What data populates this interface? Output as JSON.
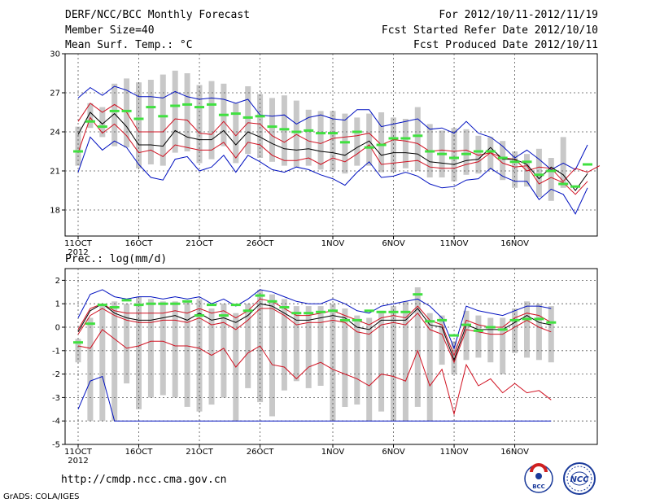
{
  "header": {
    "title": "DERF/NCC/BCC Monthly Forecast",
    "member_size": "Member Size=40",
    "variable": "Mean Surf. Temp.: °C",
    "period": "For 2012/10/11-2012/11/19",
    "started": "Fcst Started Refer Date 2012/10/10",
    "produced": "Fcst Produced Date 2012/10/11"
  },
  "footer": {
    "url": "http://cmdp.ncc.cma.gov.cn",
    "grads": "GrADS: COLA/IGES"
  },
  "logos": {
    "bcc": "BCC",
    "ncc": "NCC"
  },
  "colors": {
    "box": "#c8c8c8",
    "median": "#40e040",
    "mean": "#000000",
    "spread": "#d01020",
    "extreme": "#0010c0"
  },
  "chart_data": [
    {
      "type": "box",
      "title": "Mean Surf. Temp.: °C",
      "ylim": [
        16,
        30
      ],
      "yticks": [
        18,
        21,
        24,
        27,
        30
      ],
      "xticks": [
        {
          "i": 0,
          "label": "11OCT",
          "sub": "2012"
        },
        {
          "i": 5,
          "label": "16OCT"
        },
        {
          "i": 10,
          "label": "21OCT"
        },
        {
          "i": 15,
          "label": "26OCT"
        },
        {
          "i": 21,
          "label": "1NOV"
        },
        {
          "i": 26,
          "label": "6NOV"
        },
        {
          "i": 31,
          "label": "11NOV"
        },
        {
          "i": 36,
          "label": "16NOV"
        }
      ],
      "ndays": 40,
      "series": [
        {
          "name": "max",
          "values": [
            26.6,
            27.4,
            26.8,
            27.5,
            27.2,
            26.7,
            26.7,
            26.6,
            27.1,
            26.7,
            26.5,
            26.6,
            26.5,
            26.2,
            26.5,
            25.3,
            25.2,
            25.3,
            24.6,
            25.1,
            25.3,
            25.0,
            24.9,
            25.7,
            25.7,
            24.4,
            24.6,
            24.8,
            25.0,
            24.2,
            24.3,
            23.9,
            24.8,
            23.9,
            23.6,
            22.9,
            22.0,
            22.6,
            21.9,
            21.1,
            21.6,
            21.1,
            23.0
          ]
        },
        {
          "name": "upper",
          "values": [
            24.8,
            26.2,
            25.5,
            26.1,
            25.5,
            24.0,
            24.0,
            24.0,
            25.0,
            24.9,
            23.9,
            23.8,
            24.8,
            23.7,
            24.7,
            24.6,
            23.7,
            23.2,
            23.8,
            23.3,
            23.1,
            23.5,
            23.6,
            23.7,
            23.9,
            23.0,
            23.4,
            23.3,
            23.1,
            22.5,
            22.6,
            22.5,
            22.6,
            22.2,
            22.4,
            22.0,
            21.9,
            21.0,
            21.3,
            21.2,
            20.2,
            21.2,
            20.9,
            21.4
          ]
        },
        {
          "name": "mean",
          "values": [
            23.8,
            25.5,
            24.6,
            25.4,
            24.4,
            23.0,
            23.0,
            22.9,
            24.1,
            23.6,
            23.4,
            23.4,
            24.1,
            23.0,
            24.0,
            23.6,
            23.1,
            22.7,
            22.6,
            22.7,
            22.5,
            22.4,
            22.2,
            22.8,
            23.3,
            22.2,
            22.4,
            22.4,
            22.3,
            21.7,
            21.6,
            21.5,
            21.8,
            21.9,
            22.8,
            21.9,
            21.9,
            21.5,
            20.4,
            21.3,
            20.7,
            19.5,
            20.8
          ]
        },
        {
          "name": "lower",
          "values": [
            22.4,
            25.1,
            23.9,
            24.6,
            23.7,
            22.4,
            22.6,
            22.1,
            23.0,
            22.8,
            22.6,
            22.6,
            23.2,
            22.0,
            23.2,
            23.0,
            22.2,
            21.8,
            21.8,
            22.0,
            21.5,
            22.0,
            21.7,
            22.3,
            23.0,
            21.5,
            21.6,
            21.7,
            21.8,
            21.3,
            21.2,
            21.2,
            21.5,
            21.7,
            22.4,
            21.6,
            21.3,
            21.4,
            20.0,
            20.5,
            20.1,
            19.2,
            20.2
          ]
        },
        {
          "name": "min",
          "values": [
            20.9,
            23.6,
            22.6,
            23.3,
            22.8,
            21.5,
            20.5,
            20.3,
            21.9,
            22.1,
            21.0,
            21.3,
            22.2,
            20.9,
            22.2,
            21.7,
            21.1,
            20.9,
            21.3,
            21.1,
            20.7,
            20.4,
            19.9,
            20.9,
            21.7,
            20.5,
            20.6,
            20.9,
            20.6,
            20.0,
            19.7,
            19.8,
            20.3,
            20.4,
            21.2,
            20.6,
            20.2,
            20.2,
            18.8,
            19.6,
            19.2,
            17.7,
            19.7
          ]
        },
        {
          "name": "box_high",
          "values": [
            24.4,
            26.2,
            25.9,
            27.7,
            28.1,
            27.8,
            28.0,
            28.4,
            28.7,
            28.5,
            27.6,
            27.9,
            27.7,
            26.2,
            27.5,
            26.9,
            26.6,
            26.8,
            26.4,
            25.7,
            25.6,
            25.6,
            25.4,
            25.1,
            25.4,
            25.5,
            25.1,
            25.0,
            25.9,
            24.6,
            24.1,
            24.3,
            24.2,
            23.7,
            23.6,
            23.3,
            22.5,
            22.3,
            22.7,
            22.0,
            23.6
          ]
        },
        {
          "name": "box_low",
          "values": [
            21.4,
            24.3,
            23.6,
            22.9,
            22.8,
            21.2,
            21.5,
            21.4,
            22.4,
            22.5,
            21.6,
            21.9,
            22.9,
            21.6,
            22.3,
            22.0,
            21.7,
            21.4,
            21.3,
            21.4,
            21.1,
            21.0,
            20.8,
            21.4,
            21.4,
            20.9,
            20.9,
            21.2,
            21.0,
            20.5,
            20.5,
            20.2,
            20.7,
            20.8,
            21.1,
            20.3,
            19.7,
            19.8,
            19.0,
            18.7,
            19.7
          ]
        },
        {
          "name": "median",
          "values": [
            22.5,
            24.8,
            24.4,
            25.6,
            25.6,
            25.0,
            25.9,
            25.2,
            26.0,
            26.1,
            25.9,
            26.1,
            25.3,
            25.4,
            25.1,
            25.2,
            24.4,
            24.2,
            24.0,
            24.1,
            23.9,
            23.9,
            23.2,
            24.0,
            22.8,
            23.0,
            23.5,
            23.5,
            23.7,
            22.5,
            22.3,
            22.0,
            22.3,
            22.5,
            22.5,
            22.0,
            21.7,
            21.7,
            20.7,
            21.0,
            20.0,
            19.8,
            21.5
          ]
        }
      ]
    },
    {
      "type": "box",
      "title": "Prec.: log(mm/d)",
      "ylim": [
        -5,
        2.5
      ],
      "yticks": [
        -5,
        -4,
        -3,
        -2,
        -1,
        0,
        1,
        2
      ],
      "xticks": [
        {
          "i": 0,
          "label": "11OCT",
          "sub": "2012"
        },
        {
          "i": 5,
          "label": "16OCT"
        },
        {
          "i": 10,
          "label": "21OCT"
        },
        {
          "i": 15,
          "label": "26OCT"
        },
        {
          "i": 21,
          "label": "1NOV"
        },
        {
          "i": 26,
          "label": "6NOV"
        },
        {
          "i": 31,
          "label": "11NOV"
        },
        {
          "i": 36,
          "label": "16NOV"
        }
      ],
      "ndays": 40,
      "series": [
        {
          "name": "max",
          "values": [
            0.4,
            1.4,
            1.6,
            1.3,
            1.2,
            1.3,
            1.3,
            1.2,
            1.3,
            1.2,
            1.3,
            1.0,
            1.2,
            0.9,
            1.2,
            1.6,
            1.5,
            1.3,
            1.1,
            1.0,
            1.0,
            1.2,
            1.0,
            0.7,
            0.6,
            0.9,
            1.0,
            1.1,
            1.2,
            0.9,
            0.4,
            -0.9,
            0.9,
            0.7,
            0.6,
            0.5,
            0.7,
            0.9,
            0.9,
            0.8
          ]
        },
        {
          "name": "upper",
          "values": [
            -0.1,
            0.8,
            1.0,
            0.7,
            0.6,
            0.6,
            0.6,
            0.6,
            0.7,
            0.6,
            0.8,
            0.6,
            0.7,
            0.4,
            0.7,
            1.2,
            1.1,
            0.8,
            0.5,
            0.5,
            0.6,
            0.7,
            0.5,
            0.3,
            0.1,
            0.4,
            0.5,
            0.4,
            0.9,
            0.3,
            0.1,
            -1.2,
            0.3,
            0.1,
            0.0,
            0.0,
            0.4,
            0.6,
            0.5,
            0.2
          ]
        },
        {
          "name": "mean",
          "values": [
            -0.2,
            0.7,
            1.0,
            0.6,
            0.4,
            0.3,
            0.3,
            0.4,
            0.5,
            0.3,
            0.6,
            0.3,
            0.4,
            0.2,
            0.5,
            1.0,
            0.9,
            0.6,
            0.3,
            0.3,
            0.4,
            0.5,
            0.4,
            0.0,
            -0.1,
            0.3,
            0.3,
            0.3,
            0.8,
            0.1,
            0.0,
            -1.4,
            0.1,
            -0.1,
            -0.1,
            -0.1,
            0.2,
            0.5,
            0.2,
            0.1
          ]
        },
        {
          "name": "lower",
          "values": [
            -0.3,
            0.5,
            0.8,
            0.5,
            0.3,
            0.2,
            0.2,
            0.3,
            0.3,
            0.2,
            0.4,
            0.1,
            0.2,
            -0.1,
            0.3,
            0.8,
            0.8,
            0.5,
            0.1,
            0.2,
            0.2,
            0.3,
            0.2,
            -0.2,
            -0.3,
            0.1,
            0.2,
            0.1,
            0.6,
            -0.1,
            -0.3,
            -1.5,
            -0.1,
            -0.2,
            -0.3,
            -0.3,
            0.0,
            0.3,
            0.0,
            -0.2
          ]
        },
        {
          "name": "spread_low",
          "values": [
            -0.8,
            -0.9,
            -0.1,
            -0.5,
            -0.9,
            -0.8,
            -0.6,
            -0.6,
            -0.8,
            -0.8,
            -0.9,
            -1.2,
            -0.9,
            -1.7,
            -1.1,
            -0.8,
            -1.6,
            -1.7,
            -2.2,
            -1.7,
            -1.5,
            -1.8,
            -2.0,
            -2.2,
            -2.5,
            -2.0,
            -2.1,
            -2.3,
            -1.0,
            -2.5,
            -1.8,
            -3.7,
            -1.6,
            -2.5,
            -2.2,
            -2.8,
            -2.4,
            -2.8,
            -2.7,
            -3.1
          ]
        },
        {
          "name": "min",
          "values": [
            -3.5,
            -2.3,
            -2.1,
            -4.0,
            -4.0,
            -4.0,
            -4.0,
            -4.0,
            -4.0,
            -4.0,
            -4.0,
            -4.0,
            -4.0,
            -4.0,
            -4.0,
            -4.0,
            -4.0,
            -4.0,
            -4.0,
            -4.0,
            -4.0,
            -4.0,
            -4.0,
            -4.0,
            -4.0,
            -4.0,
            -4.0,
            -4.0,
            -4.0,
            -4.0,
            -4.0,
            -4.0,
            -4.0,
            -4.0,
            -4.0,
            -4.0,
            -4.0,
            -4.0,
            -4.0,
            -4.0
          ]
        },
        {
          "name": "box_high",
          "values": [
            -0.5,
            0.4,
            1.0,
            1.1,
            1.0,
            1.3,
            1.2,
            1.1,
            1.1,
            1.1,
            1.2,
            0.8,
            1.0,
            0.6,
            1.0,
            1.6,
            1.4,
            1.2,
            0.9,
            0.9,
            0.9,
            1.0,
            0.8,
            0.5,
            0.4,
            0.7,
            0.9,
            1.1,
            1.7,
            0.6,
            0.5,
            -0.6,
            0.7,
            0.5,
            0.4,
            0.4,
            0.8,
            1.1,
            1.0,
            0.9,
            0.8
          ]
        },
        {
          "name": "box_low",
          "values": [
            -1.5,
            -4.0,
            -4.0,
            -4.0,
            -2.4,
            -3.5,
            -3.0,
            -2.9,
            -3.0,
            -3.4,
            -3.6,
            -3.3,
            -3.0,
            -4.0,
            -2.6,
            -3.2,
            -3.8,
            -2.7,
            -2.3,
            -2.6,
            -2.5,
            -4.0,
            -3.4,
            -3.3,
            -4.0,
            -3.6,
            -4.0,
            -4.0,
            -3.4,
            -4.0,
            -1.6,
            -2.0,
            -1.4,
            -1.3,
            -1.5,
            -2.0,
            -1.1,
            -1.3,
            -1.4,
            -1.5
          ]
        },
        {
          "name": "median",
          "values": [
            -0.65,
            0.15,
            0.95,
            0.85,
            1.15,
            0.95,
            1.0,
            1.0,
            1.0,
            1.1,
            0.5,
            0.95,
            0.5,
            0.95,
            0.7,
            1.35,
            1.1,
            0.85,
            0.6,
            0.6,
            0.65,
            0.7,
            0.3,
            0.3,
            0.7,
            0.65,
            0.65,
            0.65,
            1.4,
            0.25,
            0.3,
            -0.35,
            0.1,
            -0.15,
            0.0,
            -0.1,
            0.3,
            0.35,
            0.35,
            0.2
          ]
        }
      ]
    }
  ],
  "panel2_title": "Prec.: log(mm/d)"
}
